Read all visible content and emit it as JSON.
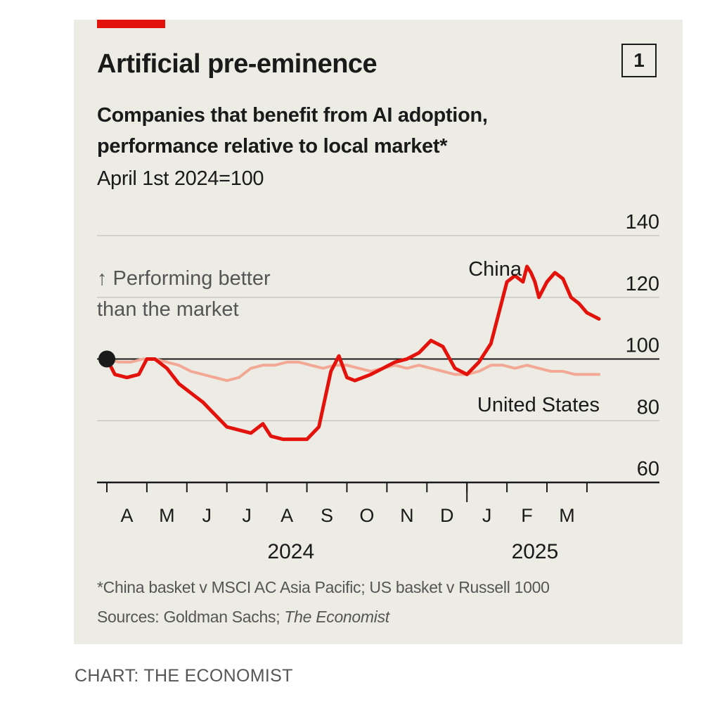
{
  "header": {
    "title": "Artificial pre-eminence",
    "badge": "1",
    "subtitle_line1": "Companies that benefit from AI adoption,",
    "subtitle_line2": "performance relative to local market*",
    "unit": "April 1st 2024=100"
  },
  "annotation": {
    "line1": "↑ Performing better",
    "line2": "than the market"
  },
  "footer": {
    "footnote": "*China basket v MSCI AC Asia Pacific; US basket v Russell 1000",
    "sources_prefix": "Sources: Goldman Sachs; ",
    "sources_italic": "The Economist",
    "credit": "CHART: THE ECONOMIST"
  },
  "colors": {
    "background": "#ecebe4",
    "china": "#e3120b",
    "united_states": "#f2a895",
    "accent": "#e3120b",
    "grid": "#c9c8c0",
    "axis": "#1a1a1a"
  },
  "chart_data": {
    "type": "line",
    "title": "Artificial pre-eminence",
    "subtitle": "Companies that benefit from AI adoption, performance relative to local market*",
    "ylabel": "April 1st 2024=100",
    "xlabel": "",
    "ylim": [
      60,
      140
    ],
    "yticks": [
      60,
      80,
      100,
      120,
      140
    ],
    "baseline": 100,
    "grid": true,
    "x_domain": [
      0,
      12.3
    ],
    "x_unit": "months since April 1st 2024",
    "month_labels": [
      {
        "label": "A",
        "x": 0.5
      },
      {
        "label": "M",
        "x": 1.5
      },
      {
        "label": "J",
        "x": 2.5
      },
      {
        "label": "J",
        "x": 3.5
      },
      {
        "label": "A",
        "x": 4.5
      },
      {
        "label": "S",
        "x": 5.5
      },
      {
        "label": "O",
        "x": 6.5
      },
      {
        "label": "N",
        "x": 7.5
      },
      {
        "label": "D",
        "x": 8.5
      },
      {
        "label": "J",
        "x": 9.5
      },
      {
        "label": "F",
        "x": 10.5
      },
      {
        "label": "M",
        "x": 11.5
      }
    ],
    "month_ticks": [
      0,
      1,
      2,
      3,
      4,
      5,
      6,
      7,
      8,
      9,
      10,
      11,
      12
    ],
    "year_divider_x": 9,
    "year_labels": [
      {
        "label": "2024",
        "x": 4.6
      },
      {
        "label": "2025",
        "x": 10.7
      }
    ],
    "start_point": {
      "x": 0,
      "y": 100
    },
    "series": [
      {
        "name": "United States",
        "x": [
          0,
          0.3,
          0.6,
          0.9,
          1.2,
          1.5,
          1.8,
          2.1,
          2.4,
          2.7,
          3.0,
          3.3,
          3.6,
          3.9,
          4.2,
          4.5,
          4.8,
          5.1,
          5.4,
          5.7,
          6.0,
          6.3,
          6.6,
          6.9,
          7.2,
          7.5,
          7.8,
          8.1,
          8.4,
          8.7,
          9.0,
          9.3,
          9.6,
          9.9,
          10.2,
          10.5,
          10.8,
          11.1,
          11.4,
          11.7,
          12.0,
          12.3
        ],
        "values": [
          100,
          99,
          99,
          100,
          100,
          99,
          98,
          96,
          95,
          94,
          93,
          94,
          97,
          98,
          98,
          99,
          99,
          98,
          97,
          98,
          98,
          97,
          96,
          97,
          98,
          97,
          98,
          97,
          96,
          95,
          95,
          96,
          98,
          98,
          97,
          98,
          97,
          96,
          96,
          95,
          95,
          95
        ]
      },
      {
        "name": "China",
        "x": [
          0,
          0.2,
          0.5,
          0.8,
          1.0,
          1.2,
          1.5,
          1.8,
          2.1,
          2.4,
          2.7,
          3.0,
          3.3,
          3.6,
          3.9,
          4.1,
          4.4,
          4.7,
          5.0,
          5.3,
          5.6,
          5.8,
          6.0,
          6.2,
          6.4,
          6.6,
          6.9,
          7.2,
          7.5,
          7.8,
          8.1,
          8.4,
          8.7,
          9.0,
          9.3,
          9.6,
          9.8,
          10.0,
          10.2,
          10.4,
          10.5,
          10.6,
          10.7,
          10.8,
          11.0,
          11.2,
          11.4,
          11.6,
          11.8,
          12.0,
          12.3
        ],
        "values": [
          100,
          95,
          94,
          95,
          100,
          100,
          97,
          92,
          89,
          86,
          82,
          78,
          77,
          76,
          79,
          75,
          74,
          74,
          74,
          78,
          96,
          101,
          94,
          93,
          94,
          95,
          97,
          99,
          100,
          102,
          106,
          104,
          97,
          95,
          99,
          105,
          115,
          125,
          127,
          125,
          130,
          128,
          125,
          120,
          125,
          128,
          126,
          120,
          118,
          115,
          113
        ]
      }
    ],
    "annotations": [
      {
        "text": "China",
        "series": "China"
      },
      {
        "text": "United States",
        "series": "United States"
      }
    ]
  }
}
